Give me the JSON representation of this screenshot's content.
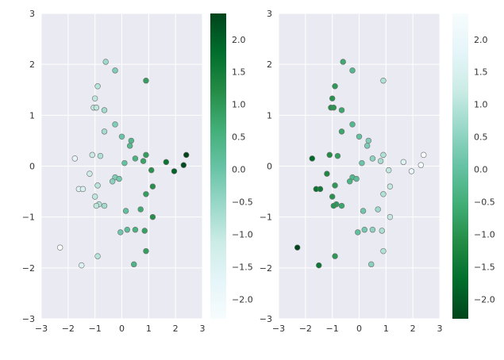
{
  "chart_data": [
    {
      "type": "scatter",
      "title": "",
      "xlabel": "",
      "ylabel": "",
      "xlim": [
        -3,
        3
      ],
      "ylim": [
        -3,
        3
      ],
      "xticks": [
        "−3",
        "−2",
        "−1",
        "0",
        "1",
        "2",
        "3"
      ],
      "yticks": [
        "−3",
        "−2",
        "−1",
        "0",
        "1",
        "2",
        "3"
      ],
      "grid": true,
      "colormap": "BuGn",
      "colorbar": {
        "range": [
          -2.3,
          2.4
        ],
        "ticks": [
          "−2.0",
          "−1.5",
          "−1.0",
          "−0.5",
          "0.0",
          "0.5",
          "1.0",
          "1.5",
          "2.0"
        ],
        "tick_values": [
          -2.0,
          -1.5,
          -1.0,
          -0.5,
          0.0,
          0.5,
          1.0,
          1.5,
          2.0
        ]
      },
      "points": [
        {
          "x": -0.6,
          "y": 2.05
        },
        {
          "x": -0.25,
          "y": 1.88
        },
        {
          "x": 0.9,
          "y": 1.68
        },
        {
          "x": -0.9,
          "y": 1.57
        },
        {
          "x": -1.0,
          "y": 1.33
        },
        {
          "x": -1.05,
          "y": 1.15
        },
        {
          "x": -0.95,
          "y": 1.15
        },
        {
          "x": -0.65,
          "y": 1.1
        },
        {
          "x": -0.25,
          "y": 0.82
        },
        {
          "x": -0.65,
          "y": 0.68
        },
        {
          "x": 0.0,
          "y": 0.58
        },
        {
          "x": 0.35,
          "y": 0.5
        },
        {
          "x": 0.3,
          "y": 0.4
        },
        {
          "x": -1.75,
          "y": 0.15
        },
        {
          "x": -1.1,
          "y": 0.22
        },
        {
          "x": -0.8,
          "y": 0.2
        },
        {
          "x": 0.5,
          "y": 0.15
        },
        {
          "x": 0.9,
          "y": 0.22
        },
        {
          "x": 0.8,
          "y": 0.1
        },
        {
          "x": 1.65,
          "y": 0.08
        },
        {
          "x": 2.4,
          "y": 0.22
        },
        {
          "x": 0.1,
          "y": 0.06
        },
        {
          "x": 2.3,
          "y": 0.02
        },
        {
          "x": 1.1,
          "y": -0.08
        },
        {
          "x": 1.95,
          "y": -0.1
        },
        {
          "x": -1.2,
          "y": -0.15
        },
        {
          "x": -0.25,
          "y": -0.22
        },
        {
          "x": -0.1,
          "y": -0.25
        },
        {
          "x": -0.35,
          "y": -0.3
        },
        {
          "x": -0.9,
          "y": -0.38
        },
        {
          "x": 1.15,
          "y": -0.4
        },
        {
          "x": -1.6,
          "y": -0.45
        },
        {
          "x": -1.45,
          "y": -0.45
        },
        {
          "x": 0.9,
          "y": -0.55
        },
        {
          "x": -1.0,
          "y": -0.6
        },
        {
          "x": -0.85,
          "y": -0.75
        },
        {
          "x": -0.95,
          "y": -0.78
        },
        {
          "x": -0.65,
          "y": -0.78
        },
        {
          "x": 0.7,
          "y": -0.85
        },
        {
          "x": 0.15,
          "y": -0.88
        },
        {
          "x": 1.15,
          "y": -1.0
        },
        {
          "x": 0.2,
          "y": -1.25
        },
        {
          "x": 0.5,
          "y": -1.25
        },
        {
          "x": 0.85,
          "y": -1.27
        },
        {
          "x": -0.05,
          "y": -1.3
        },
        {
          "x": -2.3,
          "y": -1.6
        },
        {
          "x": 0.9,
          "y": -1.67
        },
        {
          "x": -0.9,
          "y": -1.77
        },
        {
          "x": 0.45,
          "y": -1.93
        },
        {
          "x": -1.5,
          "y": -1.95
        }
      ]
    },
    {
      "type": "scatter",
      "title": "",
      "xlabel": "",
      "ylabel": "",
      "xlim": [
        -3,
        3
      ],
      "ylim": [
        -3,
        3
      ],
      "xticks": [
        "−3",
        "−2",
        "−1",
        "0",
        "1",
        "2",
        "3"
      ],
      "yticks": [
        "−3",
        "−2",
        "−1",
        "0",
        "1",
        "2",
        "3"
      ],
      "grid": true,
      "colormap": "BuGn_r",
      "colorbar": {
        "range": [
          -2.3,
          2.4
        ],
        "ticks": [
          "−2.0",
          "−1.5",
          "−1.0",
          "−0.5",
          "0.0",
          "0.5",
          "1.0",
          "1.5",
          "2.0"
        ],
        "tick_values": [
          -2.0,
          -1.5,
          -1.0,
          -0.5,
          0.0,
          0.5,
          1.0,
          1.5,
          2.0
        ]
      },
      "points": "same as left panel"
    }
  ]
}
